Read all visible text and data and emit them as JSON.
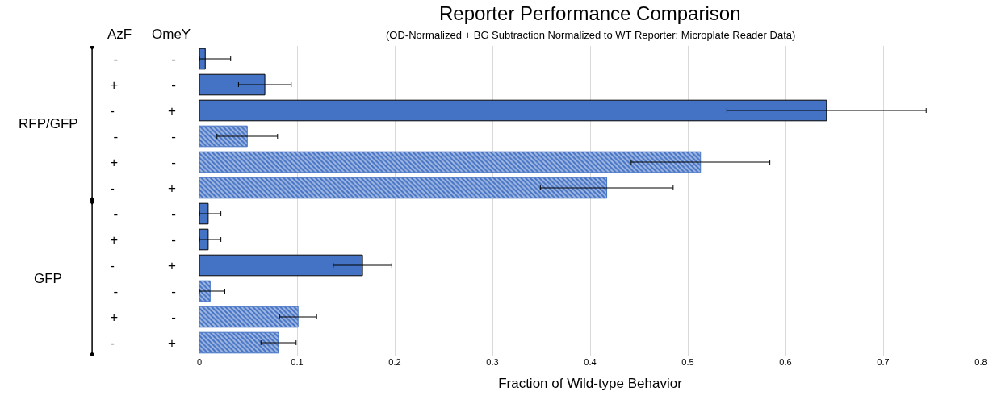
{
  "chart_data": {
    "type": "bar",
    "orientation": "horizontal",
    "title": "Reporter Performance Comparison",
    "subtitle": "(OD-Normalized + BG Subtraction Normalized to WT Reporter: Microplate Reader Data)",
    "xlabel": "Fraction of Wild-type Behavior",
    "categories": [
      "-              -",
      "+              -",
      "-              +",
      "-              -",
      "+              -",
      "-              +",
      "-              -",
      "+              -",
      "-              +",
      "-              -",
      "+              -",
      "-              +"
    ],
    "series": [
      {
        "color": "#4472c4",
        "values": [
          0.006,
          0.067,
          0.642,
          null,
          null,
          null,
          0.009,
          0.009,
          0.167,
          null,
          null,
          null
        ],
        "errors": [
          [
            0,
            0.032
          ],
          0.027,
          0.102,
          null,
          null,
          null,
          [
            0,
            0.022
          ],
          [
            0,
            0.022
          ],
          0.03,
          null,
          null,
          null
        ]
      },
      {
        "color": "#4472c4",
        "values": [
          null,
          null,
          null,
          0.049,
          0.513,
          0.417,
          null,
          null,
          null,
          0.011,
          0.101,
          0.081
        ],
        "errors": [
          null,
          null,
          null,
          0.031,
          0.071,
          0.068,
          null,
          null,
          null,
          [
            0,
            0.026
          ],
          0.019,
          0.018
        ]
      }
    ],
    "annotations": [
      "AzF",
      "OmeY",
      "RFP/GFP",
      "GFP"
    ],
    "xlim": [
      0,
      0.8
    ],
    "xticks": [
      0,
      0.1,
      0.2,
      0.3,
      0.4,
      0.5,
      0.6,
      0.7,
      0.8
    ],
    "grid": "x"
  }
}
